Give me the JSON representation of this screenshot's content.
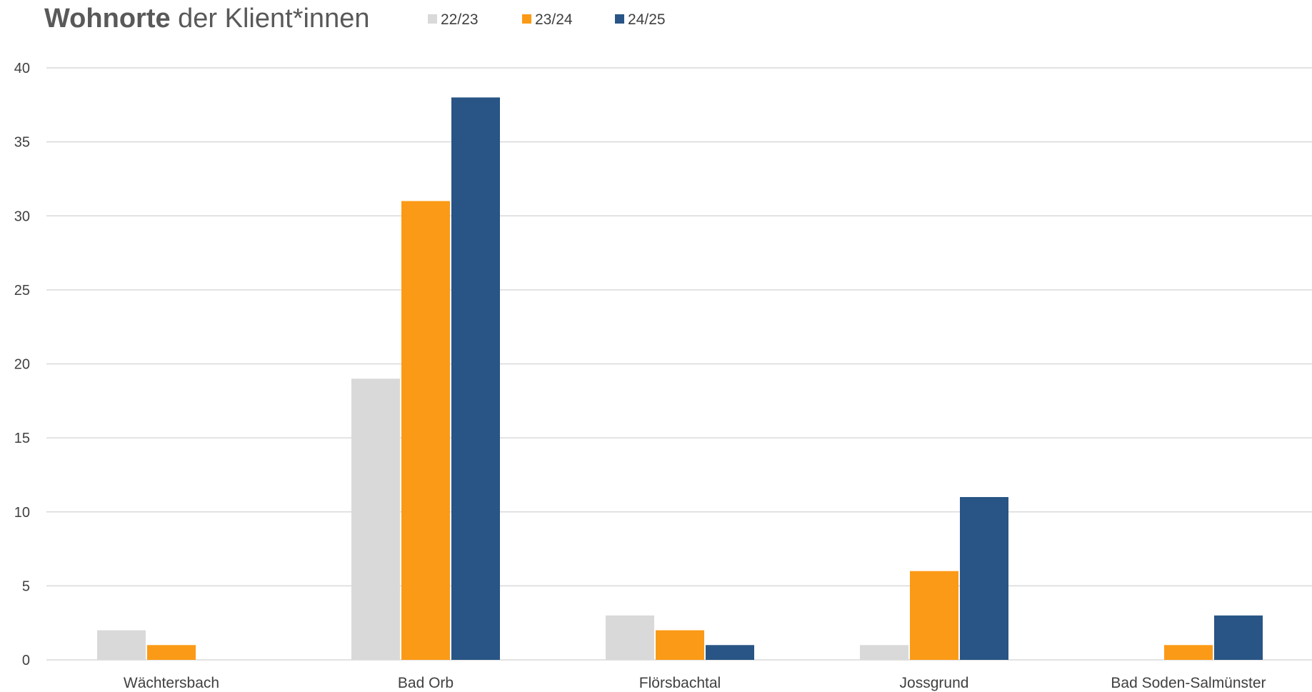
{
  "chart_data": {
    "type": "bar",
    "title_bold": "Wohnorte",
    "title_rest": " der Klient*innen",
    "categories": [
      "Wächtersbach",
      "Bad Orb",
      "Flörsbachtal",
      "Jossgrund",
      "Bad Soden-Salmünster"
    ],
    "series": [
      {
        "name": "22/23",
        "color": "#d9d9d9",
        "values": [
          2,
          19,
          3,
          1,
          0
        ]
      },
      {
        "name": "23/24",
        "color": "#fb9a16",
        "values": [
          1,
          31,
          2,
          6,
          1
        ]
      },
      {
        "name": "24/25",
        "color": "#285585",
        "values": [
          0,
          38,
          1,
          11,
          3
        ]
      }
    ],
    "ylim": [
      0,
      40
    ],
    "yticks": [
      "0",
      "5",
      "10",
      "15",
      "20",
      "25",
      "30",
      "35",
      "40"
    ],
    "xlabel": "",
    "ylabel": "",
    "grid": true,
    "legend_position": "top"
  }
}
